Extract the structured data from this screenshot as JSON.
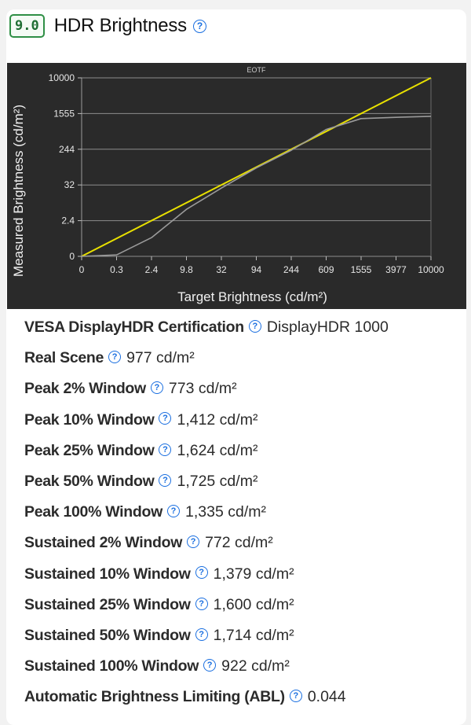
{
  "header": {
    "score": "9.0",
    "title": "HDR Brightness",
    "help_icon": "help-circle-icon"
  },
  "chart_data": {
    "type": "line",
    "title": "EOTF",
    "xlabel": "Target Brightness (cd/m²)",
    "ylabel": "Measured Brightness (cd/m²)",
    "x_ticks": [
      "0",
      "0.3",
      "2.4",
      "9.8",
      "32",
      "94",
      "244",
      "609",
      "1555",
      "3977",
      "10000"
    ],
    "y_ticks": [
      "0",
      "2.4",
      "32",
      "244",
      "1555",
      "10000"
    ],
    "grid": true,
    "background": "#2a2a2a",
    "series": [
      {
        "color": "#e8e000",
        "x": [
          0,
          10000
        ],
        "y": [
          0,
          10000
        ]
      },
      {
        "color": "#9a9a9a",
        "x": [
          "0",
          "0.3",
          "2.4",
          "9.8",
          "32",
          "94",
          "244",
          "609",
          "1555",
          "3977",
          "10000"
        ],
        "y": [
          0,
          0.05,
          0.9,
          6,
          26,
          85,
          230,
          680,
          1200,
          1280,
          1350
        ]
      }
    ]
  },
  "stats": [
    {
      "label": "VESA DisplayHDR Certification",
      "value": "DisplayHDR 1000"
    },
    {
      "label": "Real Scene",
      "value": "977 cd/m²"
    },
    {
      "label": "Peak 2% Window",
      "value": "773 cd/m²"
    },
    {
      "label": "Peak 10% Window",
      "value": "1,412 cd/m²"
    },
    {
      "label": "Peak 25% Window",
      "value": "1,624 cd/m²"
    },
    {
      "label": "Peak 50% Window",
      "value": "1,725 cd/m²"
    },
    {
      "label": "Peak 100% Window",
      "value": "1,335 cd/m²"
    },
    {
      "label": "Sustained 2% Window",
      "value": "772 cd/m²"
    },
    {
      "label": "Sustained 10% Window",
      "value": "1,379 cd/m²"
    },
    {
      "label": "Sustained 25% Window",
      "value": "1,600 cd/m²"
    },
    {
      "label": "Sustained 50% Window",
      "value": "1,714 cd/m²"
    },
    {
      "label": "Sustained 100% Window",
      "value": "922 cd/m²"
    },
    {
      "label": "Automatic Brightness Limiting (ABL)",
      "value": "0.044"
    }
  ]
}
